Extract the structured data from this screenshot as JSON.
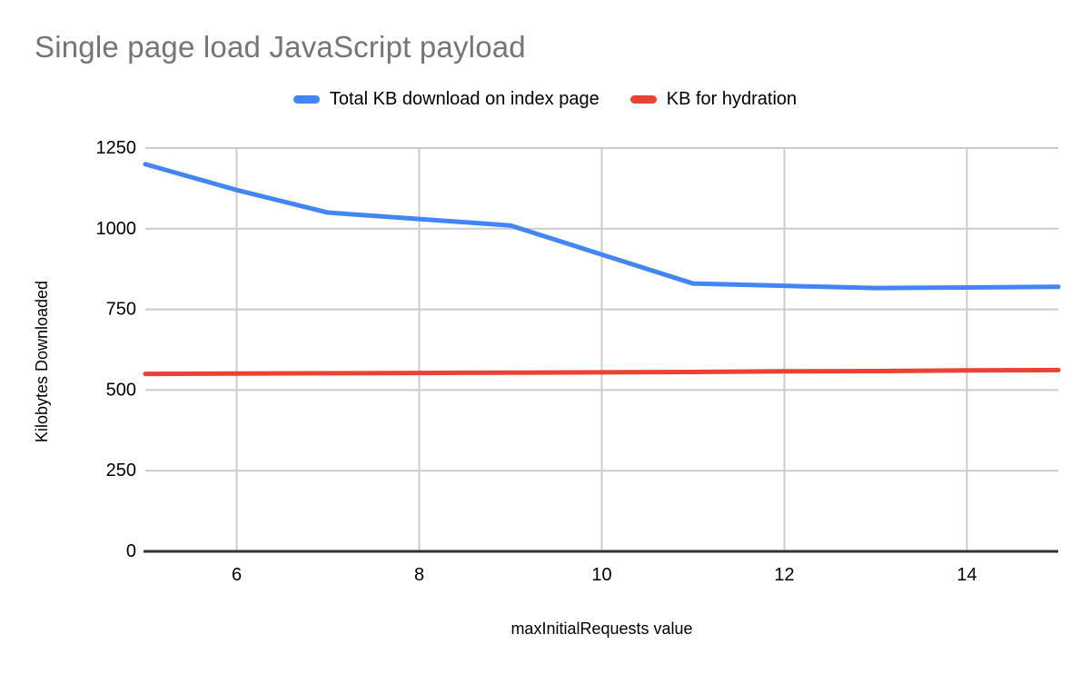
{
  "chart_data": {
    "type": "line",
    "title": "Single page load JavaScript payload",
    "xlabel": "maxInitialRequests value",
    "ylabel": "Kilobytes Downloaded",
    "x": [
      5,
      6,
      7,
      8,
      9,
      10,
      11,
      12,
      13,
      14,
      15
    ],
    "series": [
      {
        "name": "Total KB download on index page",
        "color": "#4285F4",
        "values": [
          1200,
          1120,
          1050,
          1030,
          1010,
          920,
          830,
          823,
          816,
          818,
          820
        ]
      },
      {
        "name": "KB for hydration",
        "color": "#EA4335",
        "values": [
          550,
          551,
          552,
          553,
          554,
          555,
          556,
          558,
          559,
          561,
          562
        ]
      }
    ],
    "xlim": [
      5,
      15
    ],
    "ylim": [
      0,
      1250
    ],
    "xticks": [
      6,
      8,
      10,
      12,
      14
    ],
    "yticks": [
      0,
      250,
      500,
      750,
      1000,
      1250
    ],
    "grid": true,
    "legend_position": "top"
  },
  "styles": {
    "title_color": "#757575",
    "gridline_color": "#cccccc",
    "axis_color": "#333333",
    "tick_label_color": "#000000",
    "axis_title_color": "#000000",
    "background": "#ffffff"
  }
}
